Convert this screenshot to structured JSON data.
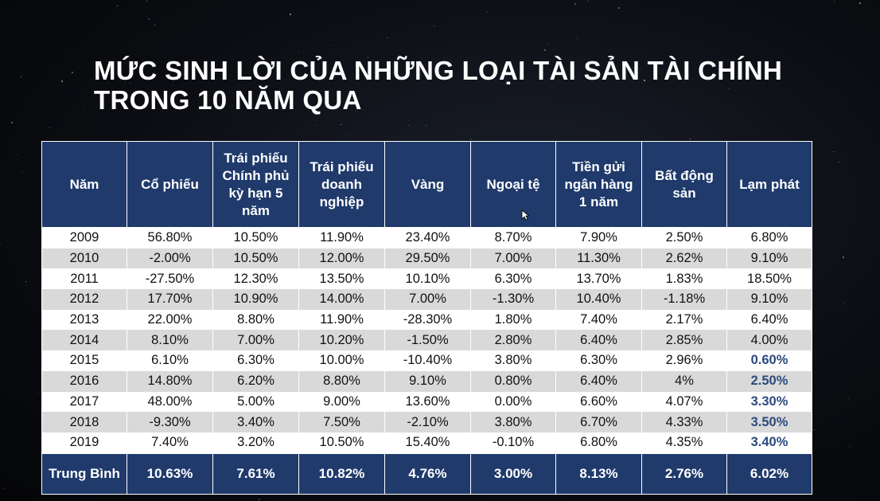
{
  "title": {
    "line1": "MỨC SINH LỜI CỦA NHỮNG LOẠI TÀI SẢN TÀI CHÍNH",
    "line2": "TRONG 10 NĂM QUA"
  },
  "table": {
    "headers": [
      "Năm",
      "Cổ phiếu",
      "Trái phiếu Chính phủ kỳ hạn 5 năm",
      "Trái phiếu doanh nghiệp",
      "Vàng",
      "Ngoại tệ",
      "Tiền gửi ngân hàng 1 năm",
      "Bất động sản",
      "Lạm phát"
    ],
    "rows": [
      [
        "2009",
        "56.80%",
        "10.50%",
        "11.90%",
        "23.40%",
        "8.70%",
        "7.90%",
        "2.50%",
        "6.80%"
      ],
      [
        "2010",
        "-2.00%",
        "10.50%",
        "12.00%",
        "29.50%",
        "7.00%",
        "11.30%",
        "2.62%",
        "9.10%"
      ],
      [
        "2011",
        "-27.50%",
        "12.30%",
        "13.50%",
        "10.10%",
        "6.30%",
        "13.70%",
        "1.83%",
        "18.50%"
      ],
      [
        "2012",
        "17.70%",
        "10.90%",
        "14.00%",
        "7.00%",
        "-1.30%",
        "10.40%",
        "-1.18%",
        "9.10%"
      ],
      [
        "2013",
        "22.00%",
        "8.80%",
        "11.90%",
        "-28.30%",
        "1.80%",
        "7.40%",
        "2.17%",
        "6.40%"
      ],
      [
        "2014",
        "8.10%",
        "7.00%",
        "10.20%",
        "-1.50%",
        "2.80%",
        "6.40%",
        "2.85%",
        "4.00%"
      ],
      [
        "2015",
        "6.10%",
        "6.30%",
        "10.00%",
        "-10.40%",
        "3.80%",
        "6.30%",
        "2.96%",
        "0.60%"
      ],
      [
        "2016",
        "14.80%",
        "6.20%",
        "8.80%",
        "9.10%",
        "0.80%",
        "6.40%",
        "4%",
        "2.50%"
      ],
      [
        "2017",
        "48.00%",
        "5.00%",
        "9.00%",
        "13.60%",
        "0.00%",
        "6.60%",
        "4.07%",
        "3.30%"
      ],
      [
        "2018",
        "-9.30%",
        "3.40%",
        "7.50%",
        "-2.10%",
        "3.80%",
        "6.70%",
        "4.33%",
        "3.50%"
      ],
      [
        "2019",
        "7.40%",
        "3.20%",
        "10.50%",
        "15.40%",
        "-0.10%",
        "6.80%",
        "4.35%",
        "3.40%"
      ]
    ],
    "average": [
      "Trung Bình",
      "10.63%",
      "7.61%",
      "10.82%",
      "4.76%",
      "3.00%",
      "8.13%",
      "2.76%",
      "6.02%"
    ]
  },
  "colors": {
    "header_bg": "#1f3a6b",
    "row_alt": "#d9d9d9",
    "highlight_text": "#2b4a7e"
  },
  "icons": {
    "cursor": "mouse-pointer-icon"
  }
}
